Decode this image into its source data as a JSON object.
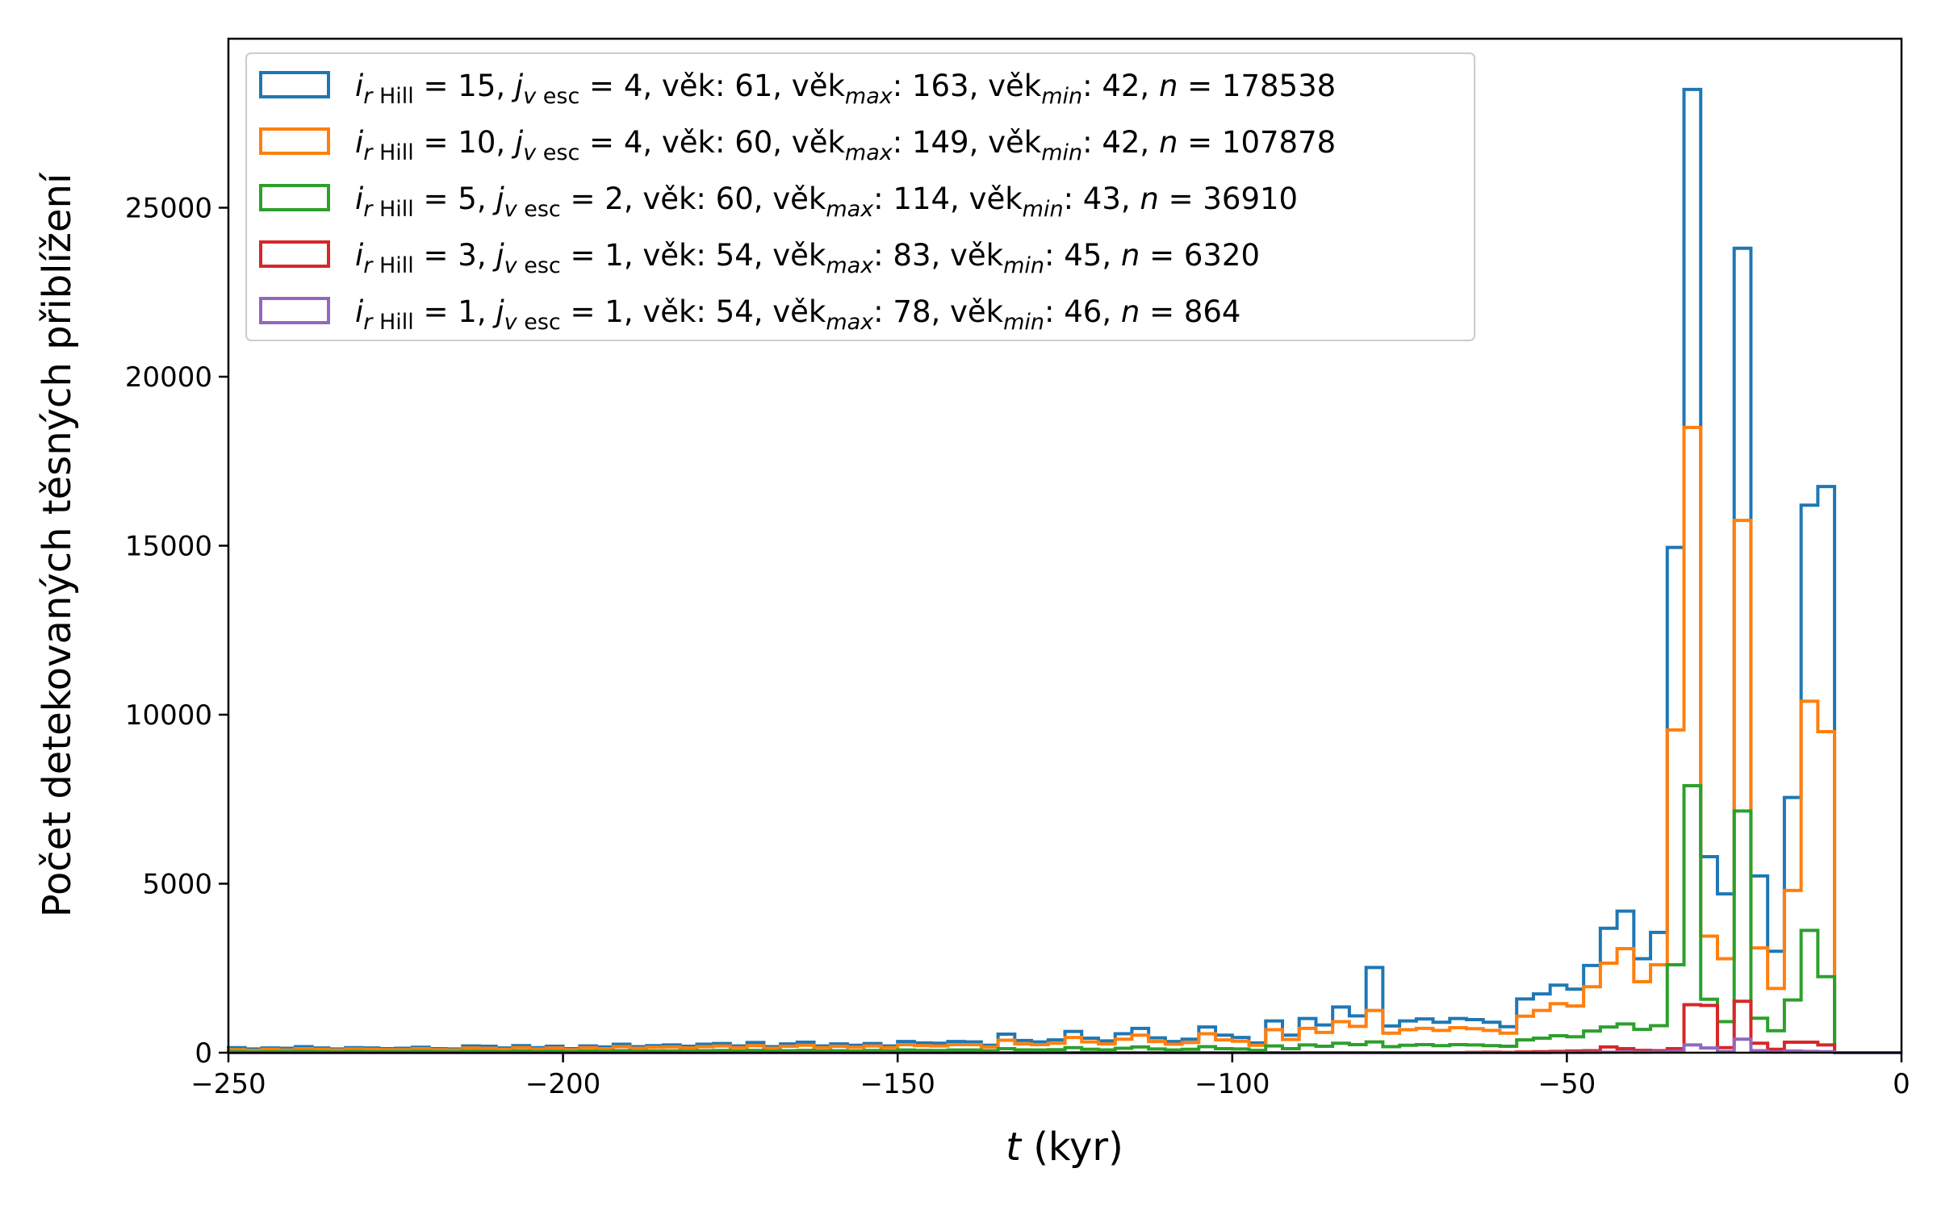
{
  "chart_data": {
    "type": "histogram-step",
    "xlabel_var": "t",
    "xlabel_unit": " (kyr)",
    "ylabel": "Počet detekovaných těsných přiblížení",
    "xlim": [
      -250,
      0
    ],
    "ylim": [
      0,
      30000
    ],
    "xticks": [
      -250,
      -200,
      -150,
      -100,
      -50,
      0
    ],
    "xtick_labels": [
      "−250",
      "−200",
      "−150",
      "−100",
      "−50",
      "0"
    ],
    "yticks": [
      0,
      5000,
      10000,
      15000,
      20000,
      25000
    ],
    "ytick_labels": [
      "0",
      "5000",
      "10000",
      "15000",
      "20000",
      "25000"
    ],
    "legend_position": "upper-left",
    "bin_start": -250,
    "bin_width": 2.5,
    "series": [
      {
        "legend": {
          "i": "15",
          "j": "4",
          "vek": " 61",
          "vekmax": "163",
          "vekmin": "42",
          "n": "178538"
        },
        "color": "#1f77b4",
        "values": [
          150,
          110,
          140,
          130,
          180,
          140,
          110,
          150,
          140,
          120,
          130,
          160,
          120,
          110,
          200,
          190,
          140,
          210,
          150,
          190,
          120,
          200,
          170,
          250,
          180,
          210,
          230,
          190,
          250,
          270,
          200,
          300,
          180,
          260,
          310,
          200,
          260,
          220,
          270,
          200,
          330,
          290,
          280,
          330,
          320,
          220,
          550,
          360,
          320,
          380,
          630,
          430,
          350,
          560,
          720,
          440,
          330,
          400,
          760,
          520,
          450,
          290,
          940,
          520,
          1010,
          820,
          1350,
          1090,
          2520,
          790,
          940,
          1000,
          900,
          1010,
          980,
          900,
          770,
          1590,
          1740,
          2000,
          1880,
          2580,
          3680,
          4190,
          2780,
          3560,
          14950,
          28500,
          5800,
          4700,
          23800,
          5230,
          3000,
          7550,
          16200,
          16750,
          0,
          0,
          0,
          0
        ]
      },
      {
        "legend": {
          "i": "10",
          "j": "4",
          "vek": " 60",
          "vekmax": "149",
          "vekmin": "42",
          "n": "107878"
        },
        "color": "#ff7f0e",
        "values": [
          90,
          70,
          100,
          80,
          120,
          100,
          80,
          110,
          100,
          90,
          90,
          120,
          90,
          80,
          140,
          130,
          100,
          150,
          110,
          140,
          90,
          150,
          120,
          180,
          130,
          160,
          170,
          140,
          180,
          200,
          150,
          210,
          130,
          190,
          220,
          150,
          190,
          160,
          200,
          150,
          240,
          210,
          200,
          240,
          240,
          170,
          370,
          260,
          240,
          280,
          450,
          320,
          260,
          400,
          520,
          330,
          250,
          300,
          560,
          380,
          340,
          220,
          680,
          390,
          720,
          600,
          920,
          780,
          1250,
          580,
          680,
          720,
          660,
          740,
          710,
          660,
          580,
          1080,
          1250,
          1450,
          1380,
          1950,
          2650,
          3080,
          2100,
          2600,
          9550,
          18500,
          3450,
          2780,
          15750,
          3100,
          1900,
          4800,
          10400,
          9500,
          0,
          0,
          0,
          0
        ]
      },
      {
        "legend": {
          "i": " 5",
          "j": "2",
          "vek": " 60",
          "vekmax": "114",
          "vekmin": "43",
          "n": "36910"
        },
        "color": "#2ca02c",
        "values": [
          30,
          20,
          30,
          30,
          40,
          30,
          20,
          35,
          30,
          30,
          30,
          40,
          30,
          25,
          45,
          40,
          30,
          50,
          35,
          45,
          30,
          50,
          40,
          60,
          40,
          50,
          55,
          45,
          60,
          65,
          50,
          70,
          45,
          60,
          70,
          50,
          60,
          50,
          65,
          50,
          80,
          70,
          65,
          80,
          80,
          60,
          120,
          85,
          80,
          90,
          150,
          100,
          85,
          130,
          170,
          110,
          80,
          100,
          180,
          120,
          110,
          70,
          200,
          120,
          230,
          190,
          280,
          240,
          320,
          180,
          220,
          240,
          210,
          240,
          230,
          210,
          190,
          380,
          430,
          500,
          470,
          640,
          760,
          850,
          690,
          800,
          2600,
          7900,
          1580,
          920,
          7150,
          1020,
          650,
          1560,
          3620,
          2250,
          0,
          0,
          0,
          0
        ]
      },
      {
        "legend": {
          "i": " 3",
          "j": "1",
          "vek": " 54",
          "vekmax": " 83",
          "vekmin": "45",
          "n": "6320"
        },
        "color": "#d62728",
        "values": [
          0,
          0,
          0,
          0,
          0,
          0,
          0,
          0,
          0,
          0,
          0,
          0,
          0,
          0,
          0,
          0,
          0,
          0,
          0,
          0,
          0,
          0,
          0,
          0,
          0,
          0,
          0,
          0,
          0,
          0,
          0,
          0,
          0,
          0,
          0,
          0,
          0,
          0,
          0,
          0,
          0,
          0,
          0,
          0,
          0,
          0,
          0,
          0,
          0,
          0,
          0,
          0,
          0,
          0,
          0,
          0,
          0,
          0,
          0,
          0,
          0,
          0,
          0,
          0,
          0,
          0,
          0,
          0,
          0,
          0,
          0,
          0,
          0,
          0,
          10,
          15,
          10,
          20,
          30,
          40,
          50,
          60,
          170,
          120,
          70,
          60,
          120,
          1420,
          1400,
          150,
          1520,
          280,
          100,
          310,
          310,
          230,
          0,
          0,
          0,
          0
        ]
      },
      {
        "legend": {
          "i": " 1",
          "j": "1",
          "vek": " 54",
          "vekmax": " 78",
          "vekmin": "46",
          "n": "864"
        },
        "color": "#9467bd",
        "values": [
          0,
          0,
          0,
          0,
          0,
          0,
          0,
          0,
          0,
          0,
          0,
          0,
          0,
          0,
          0,
          0,
          0,
          0,
          0,
          0,
          0,
          0,
          0,
          0,
          0,
          0,
          0,
          0,
          0,
          0,
          0,
          0,
          0,
          0,
          0,
          0,
          0,
          0,
          0,
          0,
          0,
          0,
          0,
          0,
          0,
          0,
          0,
          0,
          0,
          0,
          0,
          0,
          0,
          0,
          0,
          0,
          0,
          0,
          0,
          0,
          0,
          0,
          0,
          0,
          0,
          0,
          0,
          0,
          0,
          0,
          0,
          0,
          0,
          0,
          0,
          0,
          0,
          0,
          0,
          5,
          5,
          10,
          15,
          20,
          15,
          20,
          40,
          230,
          140,
          30,
          400,
          60,
          20,
          50,
          40,
          30,
          0,
          0,
          0,
          0
        ]
      }
    ]
  }
}
